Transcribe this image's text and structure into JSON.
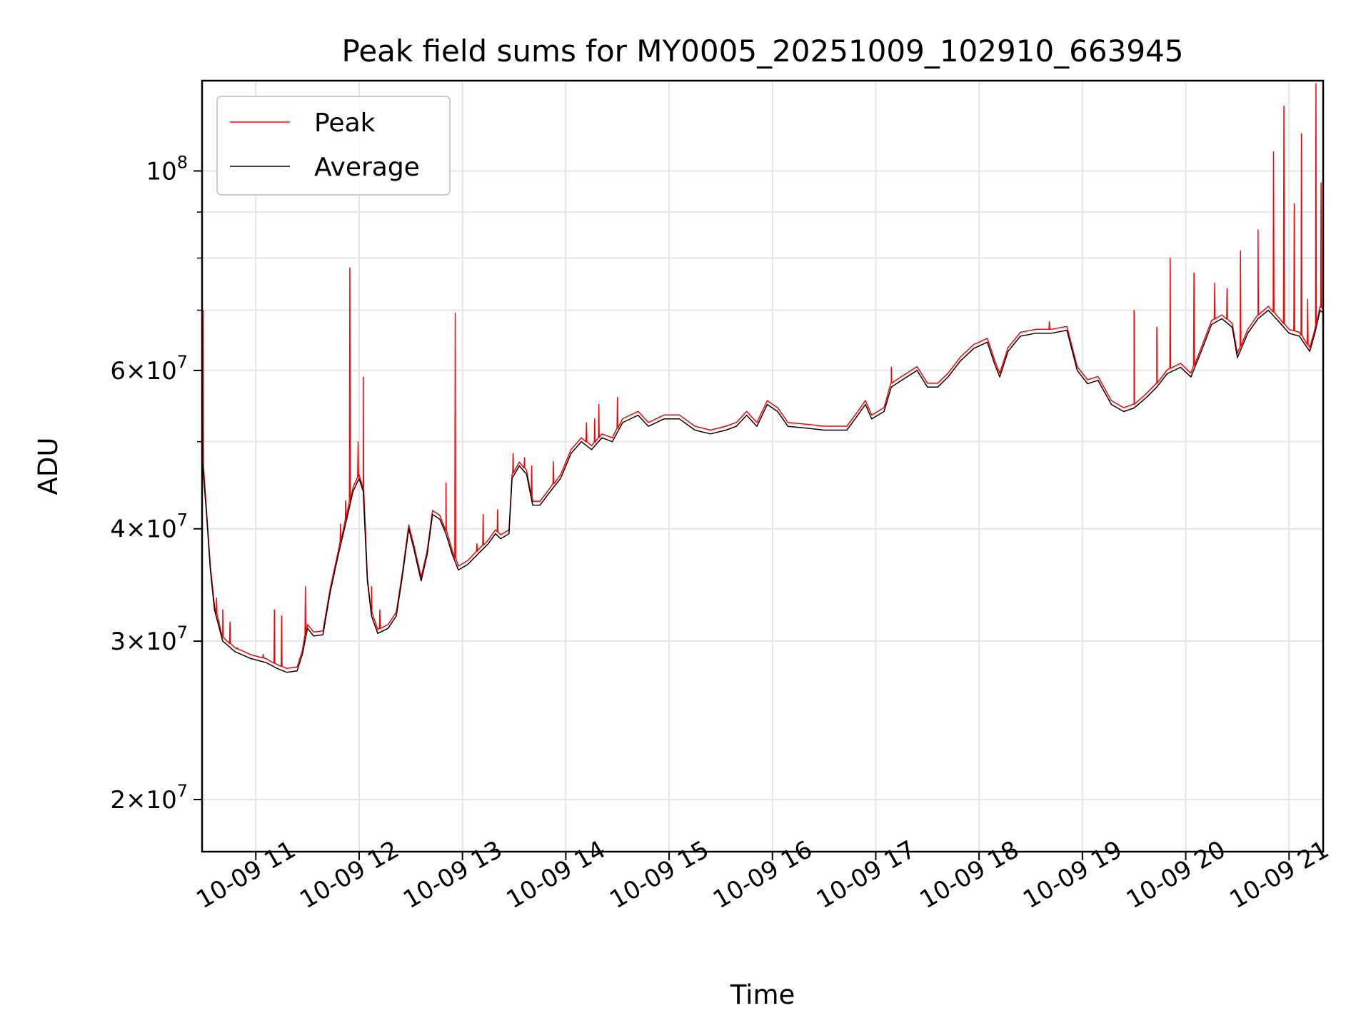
{
  "chart_data": {
    "type": "line",
    "title": "Peak field sums for MY0005_20251009_102910_663945",
    "xlabel": "Time",
    "ylabel": "ADU",
    "yscale": "log",
    "ylim": [
      17500000,
      126000000
    ],
    "xlim_hours": [
      10.48,
      21.33
    ],
    "grid": true,
    "legend_position": "upper-left",
    "x_ticks": [
      {
        "hour": 11,
        "label": "10-09 11"
      },
      {
        "hour": 12,
        "label": "10-09 12"
      },
      {
        "hour": 13,
        "label": "10-09 13"
      },
      {
        "hour": 14,
        "label": "10-09 14"
      },
      {
        "hour": 15,
        "label": "10-09 15"
      },
      {
        "hour": 16,
        "label": "10-09 16"
      },
      {
        "hour": 17,
        "label": "10-09 17"
      },
      {
        "hour": 18,
        "label": "10-09 18"
      },
      {
        "hour": 19,
        "label": "10-09 19"
      },
      {
        "hour": 20,
        "label": "10-09 20"
      },
      {
        "hour": 21,
        "label": "10-09 21"
      }
    ],
    "y_ticks": [
      {
        "value": 20000000,
        "mantissa": "2",
        "exp": "7"
      },
      {
        "value": 30000000,
        "mantissa": "3",
        "exp": "7"
      },
      {
        "value": 40000000,
        "mantissa": "4",
        "exp": "7"
      },
      {
        "value": 60000000,
        "mantissa": "6",
        "exp": "7"
      },
      {
        "value": 100000000,
        "mantissa": "",
        "exp": "8"
      }
    ],
    "y_minor_ticks": [
      50000000,
      70000000,
      80000000,
      90000000
    ],
    "series": [
      {
        "name": "Peak",
        "color": "#ff0000"
      },
      {
        "name": "Average",
        "color": "#000000"
      }
    ],
    "average_points": [
      [
        10.48,
        48000000
      ],
      [
        10.52,
        42000000
      ],
      [
        10.56,
        36000000
      ],
      [
        10.6,
        32500000
      ],
      [
        10.68,
        30000000
      ],
      [
        10.8,
        29200000
      ],
      [
        10.95,
        28700000
      ],
      [
        11.1,
        28400000
      ],
      [
        11.2,
        28000000
      ],
      [
        11.3,
        27700000
      ],
      [
        11.4,
        27800000
      ],
      [
        11.45,
        29000000
      ],
      [
        11.5,
        31000000
      ],
      [
        11.56,
        30400000
      ],
      [
        11.65,
        30500000
      ],
      [
        11.72,
        34000000
      ],
      [
        11.8,
        37500000
      ],
      [
        11.88,
        41000000
      ],
      [
        11.94,
        44000000
      ],
      [
        12.0,
        45500000
      ],
      [
        12.04,
        44000000
      ],
      [
        12.08,
        35000000
      ],
      [
        12.12,
        32000000
      ],
      [
        12.18,
        30600000
      ],
      [
        12.28,
        31000000
      ],
      [
        12.36,
        32000000
      ],
      [
        12.42,
        35500000
      ],
      [
        12.48,
        40000000
      ],
      [
        12.53,
        38000000
      ],
      [
        12.6,
        35000000
      ],
      [
        12.66,
        37500000
      ],
      [
        12.71,
        41500000
      ],
      [
        12.78,
        41000000
      ],
      [
        12.84,
        39500000
      ],
      [
        12.9,
        37500000
      ],
      [
        12.96,
        36000000
      ],
      [
        13.05,
        36500000
      ],
      [
        13.15,
        37500000
      ],
      [
        13.25,
        38500000
      ],
      [
        13.32,
        39500000
      ],
      [
        13.37,
        39000000
      ],
      [
        13.45,
        39500000
      ],
      [
        13.48,
        45500000
      ],
      [
        13.55,
        47000000
      ],
      [
        13.62,
        46000000
      ],
      [
        13.68,
        42500000
      ],
      [
        13.75,
        42500000
      ],
      [
        13.85,
        44000000
      ],
      [
        13.95,
        45500000
      ],
      [
        14.05,
        48500000
      ],
      [
        14.15,
        50000000
      ],
      [
        14.25,
        49000000
      ],
      [
        14.35,
        50500000
      ],
      [
        14.45,
        50000000
      ],
      [
        14.55,
        52500000
      ],
      [
        14.7,
        53500000
      ],
      [
        14.8,
        52000000
      ],
      [
        14.95,
        53000000
      ],
      [
        15.1,
        53000000
      ],
      [
        15.25,
        51500000
      ],
      [
        15.4,
        51000000
      ],
      [
        15.55,
        51500000
      ],
      [
        15.65,
        52000000
      ],
      [
        15.75,
        53500000
      ],
      [
        15.85,
        52000000
      ],
      [
        15.95,
        55000000
      ],
      [
        16.05,
        54000000
      ],
      [
        16.15,
        52000000
      ],
      [
        16.3,
        51800000
      ],
      [
        16.5,
        51500000
      ],
      [
        16.72,
        51500000
      ],
      [
        16.8,
        53000000
      ],
      [
        16.9,
        55000000
      ],
      [
        16.96,
        53000000
      ],
      [
        17.08,
        54000000
      ],
      [
        17.15,
        57500000
      ],
      [
        17.25,
        58500000
      ],
      [
        17.4,
        60000000
      ],
      [
        17.5,
        57500000
      ],
      [
        17.6,
        57500000
      ],
      [
        17.7,
        59000000
      ],
      [
        17.82,
        61500000
      ],
      [
        17.95,
        63500000
      ],
      [
        18.08,
        64500000
      ],
      [
        18.15,
        61000000
      ],
      [
        18.2,
        59000000
      ],
      [
        18.28,
        63000000
      ],
      [
        18.4,
        65500000
      ],
      [
        18.55,
        66000000
      ],
      [
        18.7,
        66000000
      ],
      [
        18.85,
        66500000
      ],
      [
        18.95,
        60000000
      ],
      [
        19.05,
        58000000
      ],
      [
        19.15,
        58500000
      ],
      [
        19.28,
        55000000
      ],
      [
        19.4,
        54000000
      ],
      [
        19.5,
        54500000
      ],
      [
        19.62,
        56000000
      ],
      [
        19.72,
        57500000
      ],
      [
        19.82,
        59500000
      ],
      [
        19.95,
        60500000
      ],
      [
        20.05,
        59000000
      ],
      [
        20.15,
        63000000
      ],
      [
        20.25,
        67500000
      ],
      [
        20.35,
        68500000
      ],
      [
        20.45,
        67000000
      ],
      [
        20.5,
        62000000
      ],
      [
        20.6,
        66000000
      ],
      [
        20.7,
        68500000
      ],
      [
        20.8,
        70000000
      ],
      [
        20.9,
        68000000
      ],
      [
        21.0,
        66000000
      ],
      [
        21.1,
        65500000
      ],
      [
        21.2,
        63000000
      ],
      [
        21.25,
        66000000
      ],
      [
        21.3,
        70000000
      ],
      [
        21.33,
        69500000
      ]
    ],
    "peak_spikes": [
      [
        10.49,
        70000000
      ],
      [
        10.62,
        33500000
      ],
      [
        10.68,
        32500000
      ],
      [
        10.75,
        31500000
      ],
      [
        10.82,
        29500000
      ],
      [
        11.07,
        29000000
      ],
      [
        11.18,
        32500000
      ],
      [
        11.25,
        32000000
      ],
      [
        11.48,
        34500000
      ],
      [
        11.82,
        40500000
      ],
      [
        11.87,
        43000000
      ],
      [
        11.91,
        78000000
      ],
      [
        11.99,
        50000000
      ],
      [
        12.04,
        59000000
      ],
      [
        12.12,
        34500000
      ],
      [
        12.2,
        32500000
      ],
      [
        12.84,
        45000000
      ],
      [
        12.93,
        69500000
      ],
      [
        13.14,
        38500000
      ],
      [
        13.2,
        41500000
      ],
      [
        13.34,
        42000000
      ],
      [
        13.49,
        48500000
      ],
      [
        13.6,
        48000000
      ],
      [
        13.67,
        47000000
      ],
      [
        13.88,
        47500000
      ],
      [
        14.2,
        52500000
      ],
      [
        14.28,
        53000000
      ],
      [
        14.32,
        55000000
      ],
      [
        14.5,
        56000000
      ],
      [
        17.15,
        60500000
      ],
      [
        18.68,
        68000000
      ],
      [
        19.5,
        70000000
      ],
      [
        19.72,
        67000000
      ],
      [
        19.85,
        80000000
      ],
      [
        20.08,
        77000000
      ],
      [
        20.28,
        75000000
      ],
      [
        20.4,
        74000000
      ],
      [
        20.53,
        81500000
      ],
      [
        20.7,
        86000000
      ],
      [
        20.85,
        105000000
      ],
      [
        20.95,
        118000000
      ],
      [
        21.05,
        92000000
      ],
      [
        21.12,
        110000000
      ],
      [
        21.18,
        72000000
      ],
      [
        21.26,
        125000000
      ],
      [
        21.31,
        97000000
      ]
    ]
  }
}
